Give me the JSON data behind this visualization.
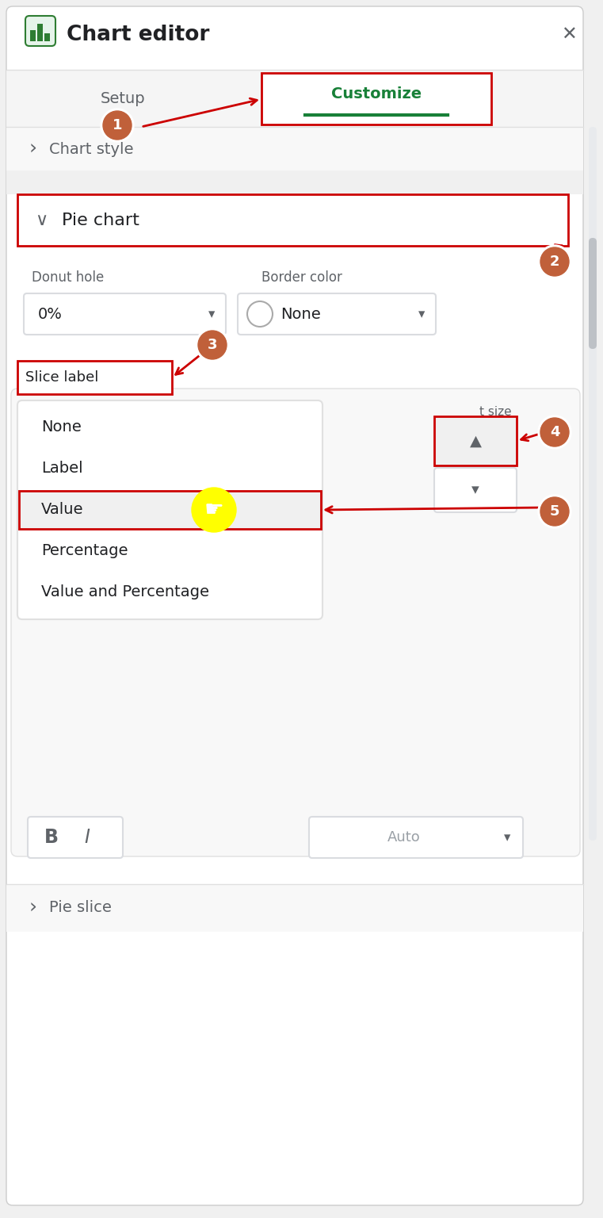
{
  "bg_color": "#f0f0f0",
  "panel_bg": "#ffffff",
  "green_color": "#188038",
  "dark_green": "#188038",
  "red_color": "#cc0000",
  "orange_color": "#c0603a",
  "title_text": "Chart editor",
  "tab_setup_text": "Setup",
  "tab_customize_text": "Customize",
  "chart_style_text": "Chart style",
  "pie_chart_text": "Pie chart",
  "donut_hole_text": "Donut hole",
  "border_color_text": "Border color",
  "dropdown_0pct": "0%",
  "dropdown_none": "None",
  "slice_label_text": "Slice label",
  "menu_items": [
    "None",
    "Label",
    "Value",
    "Percentage",
    "Value and Percentage"
  ],
  "font_size_label": "t size",
  "bold_text": "B",
  "italic_text": "I",
  "auto_text": "Auto",
  "pie_slice_text": "Pie slice",
  "text_dark": "#202124",
  "text_gray": "#5f6368",
  "border_light": "#dadce0"
}
